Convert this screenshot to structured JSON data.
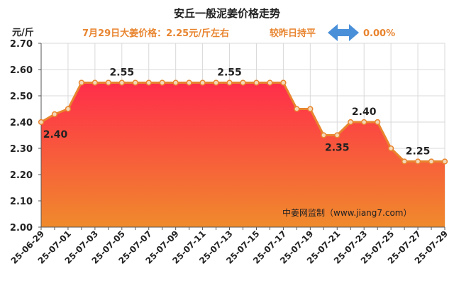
{
  "chart_data": {
    "type": "area",
    "title": "安丘一般泥姜价格走势",
    "subtitle": {
      "price_text": "7月29日大姜价格：2.25元/斤左右",
      "change_text": "较昨日持平",
      "change_pct": "0.00%"
    },
    "ylabel": "元/斤",
    "ylim": [
      2.0,
      2.7
    ],
    "yticks": [
      "2.00",
      "2.10",
      "2.20",
      "2.30",
      "2.40",
      "2.50",
      "2.60",
      "2.70"
    ],
    "x": [
      "25-06-29",
      "25-06-30",
      "25-07-01",
      "25-07-02",
      "25-07-03",
      "25-07-04",
      "25-07-05",
      "25-07-06",
      "25-07-07",
      "25-07-08",
      "25-07-09",
      "25-07-10",
      "25-07-11",
      "25-07-12",
      "25-07-13",
      "25-07-14",
      "25-07-15",
      "25-07-16",
      "25-07-17",
      "25-07-18",
      "25-07-19",
      "25-07-20",
      "25-07-21",
      "25-07-22",
      "25-07-23",
      "25-07-24",
      "25-07-25",
      "25-07-26",
      "25-07-27",
      "25-07-28",
      "25-07-29"
    ],
    "xtick_labels": [
      "25-06-29",
      "25-07-01",
      "25-07-03",
      "25-07-05",
      "25-07-07",
      "25-07-09",
      "25-07-11",
      "25-07-13",
      "25-07-15",
      "25-07-17",
      "25-07-19",
      "25-07-21",
      "25-07-23",
      "25-07-25",
      "25-07-27",
      "25-07-29"
    ],
    "values": [
      2.4,
      2.43,
      2.45,
      2.55,
      2.55,
      2.55,
      2.55,
      2.55,
      2.55,
      2.55,
      2.55,
      2.55,
      2.55,
      2.55,
      2.55,
      2.55,
      2.55,
      2.55,
      2.55,
      2.45,
      2.45,
      2.35,
      2.35,
      2.4,
      2.4,
      2.4,
      2.3,
      2.25,
      2.25,
      2.25,
      2.25
    ],
    "data_labels": [
      {
        "x": "25-06-29",
        "text": "2.40"
      },
      {
        "x": "25-07-05",
        "text": "2.55"
      },
      {
        "x": "25-07-13",
        "text": "2.55"
      },
      {
        "x": "25-07-21",
        "text": "2.35"
      },
      {
        "x": "25-07-23",
        "text": "2.40"
      },
      {
        "x": "25-07-27",
        "text": "2.25"
      }
    ],
    "watermark": "中姜网监制（www.jiang7.com）",
    "grid": true,
    "colors": {
      "line": "#e8842e",
      "marker_fill": "#f4d9b8",
      "area_top": "#ff2d4a",
      "area_bottom": "#f08a2c",
      "subtitle": "#e8842e",
      "arrow": "#4a90d9",
      "grid": "#d9d9d9",
      "text": "#222222"
    }
  }
}
